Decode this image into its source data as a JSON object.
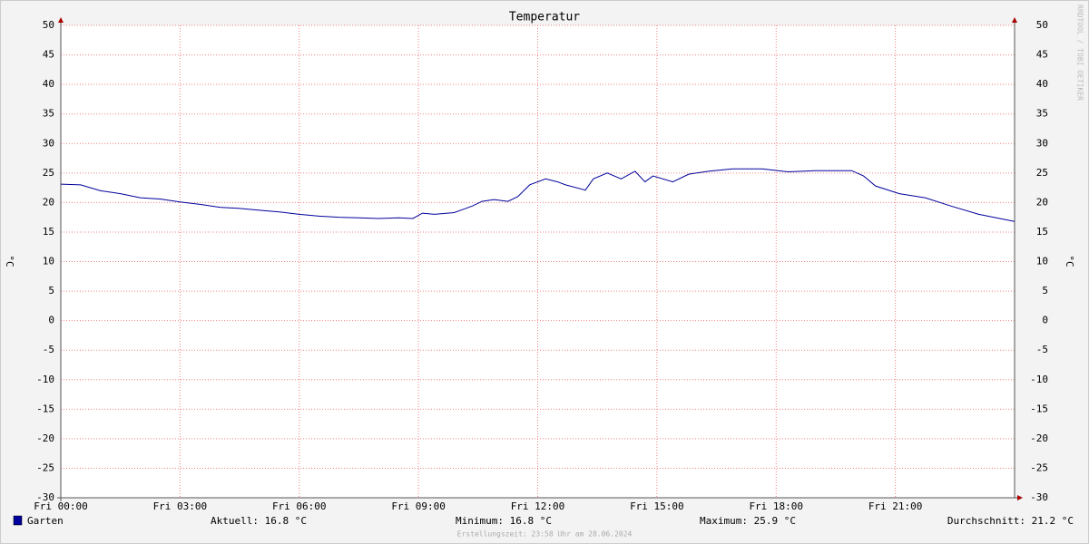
{
  "chart_data": {
    "type": "line",
    "title": "Temperatur",
    "y_label": "°C",
    "y2_label": "°C",
    "watermark": "RRDTOOL / TOBI OETIKER",
    "x": [
      0,
      0.5,
      1,
      1.5,
      2,
      2.5,
      3,
      3.5,
      4,
      4.5,
      5,
      5.5,
      6,
      6.5,
      7,
      7.5,
      8,
      8.5,
      8.86,
      9.1,
      9.4,
      9.9,
      10.35,
      10.6,
      10.9,
      11.25,
      11.5,
      11.8,
      12.2,
      12.5,
      12.7,
      13.2,
      13.4,
      13.75,
      14.1,
      14.45,
      14.7,
      14.9,
      15.4,
      15.8,
      16.3,
      16.9,
      17.65,
      18.3,
      19.0,
      19.9,
      20.2,
      20.5,
      21.1,
      21.75,
      22.45,
      23.1,
      24
    ],
    "series": [
      {
        "name": "Garten",
        "color": "#00009c",
        "values": [
          23.1,
          23.0,
          22.0,
          21.5,
          20.8,
          20.6,
          20.1,
          19.7,
          19.2,
          19.0,
          18.7,
          18.4,
          18.0,
          17.7,
          17.5,
          17.4,
          17.3,
          17.4,
          17.3,
          18.2,
          18.0,
          18.3,
          19.4,
          20.2,
          20.5,
          20.2,
          21.0,
          23.0,
          24.0,
          23.5,
          23.0,
          22.1,
          24.0,
          25.0,
          24.0,
          25.3,
          23.5,
          24.5,
          23.5,
          24.8,
          25.3,
          25.7,
          25.7,
          25.2,
          25.4,
          25.4,
          24.5,
          22.8,
          21.5,
          20.8,
          19.3,
          18.0,
          16.8
        ]
      }
    ],
    "xlim": [
      0,
      24
    ],
    "xticks": [
      {
        "value": 0,
        "label": "Fri 00:00"
      },
      {
        "value": 3,
        "label": "Fri 03:00"
      },
      {
        "value": 6,
        "label": "Fri 06:00"
      },
      {
        "value": 9,
        "label": "Fri 09:00"
      },
      {
        "value": 12,
        "label": "Fri 12:00"
      },
      {
        "value": 15,
        "label": "Fri 15:00"
      },
      {
        "value": 18,
        "label": "Fri 18:00"
      },
      {
        "value": 21,
        "label": "Fri 21:00"
      }
    ],
    "ylim": [
      -30,
      50
    ],
    "yticks": [
      -30,
      -25,
      -20,
      -15,
      -10,
      -5,
      0,
      5,
      10,
      15,
      20,
      25,
      30,
      35,
      40,
      45,
      50
    ],
    "grid": true,
    "stats": [
      "Aktuell: 16.8 °C",
      "Minimum: 16.8 °C",
      "Maximum: 25.9 °C",
      "Durchschnitt: 21.2 °C"
    ],
    "footer": "Erstellungszeit: 23:58 Uhr am 28.06.2024"
  }
}
